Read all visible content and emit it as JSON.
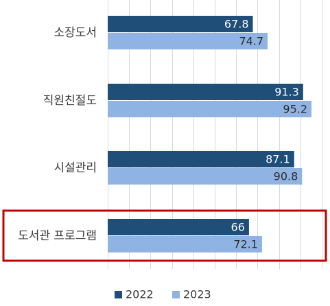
{
  "chart_data": {
    "type": "bar",
    "orientation": "horizontal",
    "categories": [
      "소장도서",
      "직원친절도",
      "시설관리",
      "도서관 프로그램"
    ],
    "series": [
      {
        "name": "2022",
        "values": [
          67.8,
          91.3,
          87.1,
          66
        ],
        "color": "#1f4e79",
        "label_color": "#ffffff"
      },
      {
        "name": "2023",
        "values": [
          74.7,
          95.2,
          90.8,
          72.1
        ],
        "color": "#8fb4e3",
        "label_color": "#2b2b2b"
      }
    ],
    "xlim": [
      0,
      100
    ],
    "grid": true,
    "legend_position": "bottom",
    "highlight": {
      "category": "도서관 프로그램",
      "color": "#c00000"
    },
    "title": "",
    "xlabel": "",
    "ylabel": ""
  }
}
